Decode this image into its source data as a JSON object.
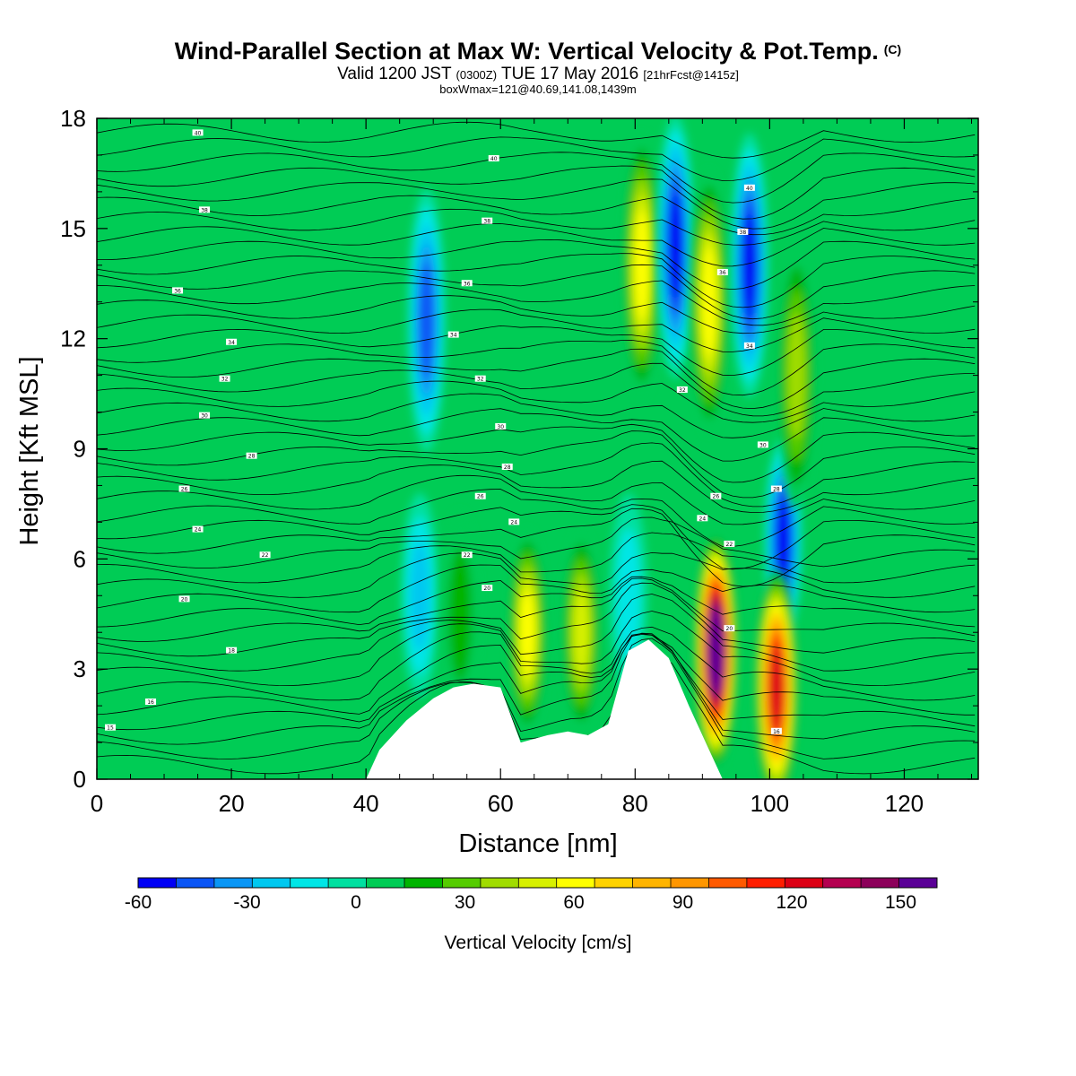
{
  "header": {
    "title": "Wind-Parallel Section at Max W: Vertical Velocity & Pot.Temp.",
    "title_mark": "(C)",
    "valid_prefix": "Valid 1200 JST",
    "valid_zulu": "(0300Z)",
    "valid_date": "TUE 17 May 2016",
    "valid_fcst": "[21hrFcst@1415z]",
    "box_info": "boxWmax=121@40.69,141.08,1439m"
  },
  "chart_data": {
    "type": "heatmap",
    "xlabel": "Distance [nm]",
    "ylabel": "Height [Kft MSL]",
    "xlim": [
      0,
      131
    ],
    "ylim": [
      0,
      18
    ],
    "x_ticks": [
      0,
      20,
      40,
      60,
      80,
      100,
      120
    ],
    "y_ticks": [
      0,
      3,
      6,
      9,
      12,
      15,
      18
    ],
    "colorbar": {
      "title": "Vertical Velocity [cm/s]",
      "range": [
        -60,
        160
      ],
      "step": 10,
      "tick_values": [
        -60,
        -30,
        0,
        30,
        60,
        90,
        120,
        150
      ],
      "colors": [
        "#0000f5",
        "#0a55f5",
        "#0a96f5",
        "#00c8f0",
        "#00e6e6",
        "#00e0a0",
        "#00cc55",
        "#00b400",
        "#55cc00",
        "#a0dc00",
        "#d7f000",
        "#ffff00",
        "#ffd200",
        "#ffb400",
        "#ff9600",
        "#ff5a00",
        "#ff1e00",
        "#dc0014",
        "#b40050",
        "#8c005a",
        "#5a0096"
      ]
    },
    "background_value": 0,
    "terrain_kft": [
      [
        0,
        0
      ],
      [
        40,
        0
      ],
      [
        42,
        0.8
      ],
      [
        46,
        1.6
      ],
      [
        50,
        2.2
      ],
      [
        53,
        2.5
      ],
      [
        56,
        2.6
      ],
      [
        60,
        2.5
      ],
      [
        63,
        1.0
      ],
      [
        67,
        1.2
      ],
      [
        70,
        1.3
      ],
      [
        73,
        1.2
      ],
      [
        76,
        1.5
      ],
      [
        79,
        3.5
      ],
      [
        82,
        3.8
      ],
      [
        85,
        3.3
      ],
      [
        88,
        2.0
      ],
      [
        91,
        0.8
      ],
      [
        93,
        0
      ],
      [
        131,
        0
      ]
    ],
    "velocity_features": [
      {
        "x": 49,
        "y": 12.5,
        "value": -50
      },
      {
        "x": 48,
        "y": 5.0,
        "value": -30
      },
      {
        "x": 54,
        "y": 4.5,
        "value": 20
      },
      {
        "x": 64,
        "y": 4.0,
        "value": 60
      },
      {
        "x": 72,
        "y": 4.0,
        "value": 45
      },
      {
        "x": 79,
        "y": 5.0,
        "value": -20
      },
      {
        "x": 81,
        "y": 14.0,
        "value": 60
      },
      {
        "x": 86,
        "y": 14.5,
        "value": -60
      },
      {
        "x": 91,
        "y": 13.0,
        "value": 60
      },
      {
        "x": 97,
        "y": 14.0,
        "value": -60
      },
      {
        "x": 102,
        "y": 6.5,
        "value": -60
      },
      {
        "x": 92,
        "y": 3.5,
        "value": 160
      },
      {
        "x": 101,
        "y": 2.5,
        "value": 121
      },
      {
        "x": 104,
        "y": 11.0,
        "value": 40
      }
    ],
    "theta_contour_labels": [
      {
        "value": "40",
        "x": 15,
        "y": 17.6
      },
      {
        "value": "40",
        "x": 59,
        "y": 16.9
      },
      {
        "value": "40",
        "x": 97,
        "y": 16.1
      },
      {
        "value": "38",
        "x": 16,
        "y": 15.5
      },
      {
        "value": "38",
        "x": 58,
        "y": 15.2
      },
      {
        "value": "38",
        "x": 96,
        "y": 14.9
      },
      {
        "value": "36",
        "x": 12,
        "y": 13.3
      },
      {
        "value": "36",
        "x": 55,
        "y": 13.5
      },
      {
        "value": "36",
        "x": 93,
        "y": 13.8
      },
      {
        "value": "34",
        "x": 20,
        "y": 11.9
      },
      {
        "value": "34",
        "x": 53,
        "y": 12.1
      },
      {
        "value": "34",
        "x": 97,
        "y": 11.8
      },
      {
        "value": "32",
        "x": 19,
        "y": 10.9
      },
      {
        "value": "32",
        "x": 57,
        "y": 10.9
      },
      {
        "value": "32",
        "x": 87,
        "y": 10.6
      },
      {
        "value": "30",
        "x": 16,
        "y": 9.9
      },
      {
        "value": "30",
        "x": 60,
        "y": 9.6
      },
      {
        "value": "30",
        "x": 99,
        "y": 9.1
      },
      {
        "value": "28",
        "x": 23,
        "y": 8.8
      },
      {
        "value": "28",
        "x": 61,
        "y": 8.5
      },
      {
        "value": "28",
        "x": 101,
        "y": 7.9
      },
      {
        "value": "26",
        "x": 13,
        "y": 7.9
      },
      {
        "value": "26",
        "x": 57,
        "y": 7.7
      },
      {
        "value": "26",
        "x": 92,
        "y": 7.7
      },
      {
        "value": "24",
        "x": 15,
        "y": 6.8
      },
      {
        "value": "24",
        "x": 62,
        "y": 7.0
      },
      {
        "value": "24",
        "x": 90,
        "y": 7.1
      },
      {
        "value": "22",
        "x": 25,
        "y": 6.1
      },
      {
        "value": "22",
        "x": 55,
        "y": 6.1
      },
      {
        "value": "22",
        "x": 94,
        "y": 6.4
      },
      {
        "value": "20",
        "x": 13,
        "y": 4.9
      },
      {
        "value": "20",
        "x": 58,
        "y": 5.2
      },
      {
        "value": "20",
        "x": 94,
        "y": 4.1
      },
      {
        "value": "18",
        "x": 20,
        "y": 3.5
      },
      {
        "value": "16",
        "x": 8,
        "y": 2.1
      },
      {
        "value": "16",
        "x": 101,
        "y": 1.3
      },
      {
        "value": "15",
        "x": 2,
        "y": 1.4
      }
    ]
  }
}
